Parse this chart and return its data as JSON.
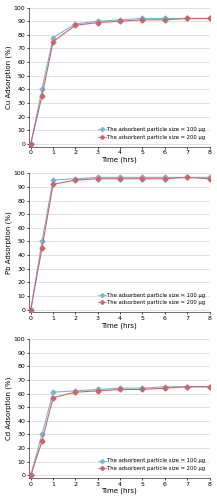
{
  "time": [
    0,
    0.5,
    1,
    2,
    3,
    4,
    5,
    6,
    7,
    8
  ],
  "cu_100": [
    0,
    40,
    78,
    88,
    90,
    91,
    92,
    92,
    92,
    92
  ],
  "cu_200": [
    0,
    35,
    75,
    87,
    89,
    90,
    91,
    91,
    92,
    92
  ],
  "pb_100": [
    0,
    50,
    95,
    96,
    97,
    97,
    97,
    97,
    97,
    97
  ],
  "pb_200": [
    0,
    45,
    92,
    95,
    96,
    96,
    96,
    96,
    97,
    96
  ],
  "cd_100": [
    0,
    30,
    61,
    62,
    63,
    64,
    64,
    65,
    65,
    65
  ],
  "cd_200": [
    0,
    25,
    57,
    61,
    62,
    63,
    63,
    64,
    65,
    65
  ],
  "time_ticks": [
    0,
    1,
    2,
    3,
    4,
    5,
    6,
    7,
    8
  ],
  "color_100": "#7ab8d9",
  "color_200": "#cc6666",
  "legend_100": "The adsorbent particle size = 100 μg",
  "legend_200": "The adsorbent particle size = 200 μg",
  "xlabel": "Time (hrs)",
  "ylabel_cu": "Cu Adsorption (%)",
  "ylabel_pb": "Pb Adsorption (%)",
  "ylabel_cd": "Cd Adsorption (%)",
  "ylim": [
    -2,
    100
  ],
  "xlim": [
    -0.1,
    8
  ],
  "yticks": [
    0,
    10,
    20,
    30,
    40,
    50,
    60,
    70,
    80,
    90,
    100
  ],
  "bg_color": "#ffffff",
  "grid_color": "#cccccc",
  "marker": "D",
  "markersize": 2.5,
  "linewidth": 0.8,
  "fontsize_label": 5,
  "fontsize_tick": 4.5,
  "fontsize_legend": 3.8
}
